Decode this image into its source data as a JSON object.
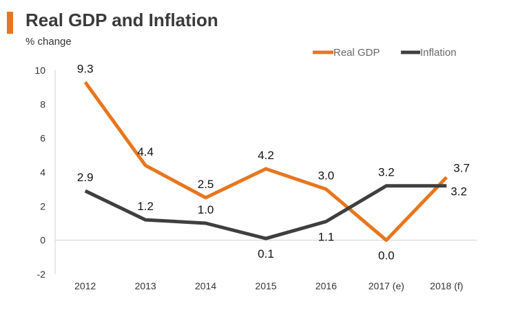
{
  "header": {
    "title": "Real GDP and Inflation",
    "subtitle": "% change"
  },
  "colors": {
    "accent": "#e8761e",
    "real_gdp": "#e8761e",
    "inflation": "#3f3f3f"
  },
  "chart_data": {
    "type": "line",
    "title": "Real GDP and Inflation",
    "ylabel": "% change",
    "xlabel": "",
    "categories": [
      "2012",
      "2013",
      "2014",
      "2015",
      "2016",
      "2017 (e)",
      "2018 (f)"
    ],
    "ylim": [
      -2,
      10
    ],
    "yticks": [
      "-2",
      "0",
      "2",
      "4",
      "6",
      "8",
      "10"
    ],
    "grid": false,
    "legend_position": "top-right",
    "series": [
      {
        "name": "Real GDP",
        "values": [
          9.3,
          4.4,
          2.5,
          4.2,
          3.0,
          0.0,
          3.7
        ],
        "labels": [
          "9.3",
          "4.4",
          "2.5",
          "4.2",
          "3.0",
          "0.0",
          "3.7"
        ]
      },
      {
        "name": "Inflation",
        "values": [
          2.9,
          1.2,
          1.0,
          0.1,
          1.1,
          3.2,
          3.2
        ],
        "labels": [
          "2.9",
          "1.2",
          "1.0",
          "0.1",
          "1.1",
          "3.2",
          "3.2"
        ]
      }
    ]
  }
}
